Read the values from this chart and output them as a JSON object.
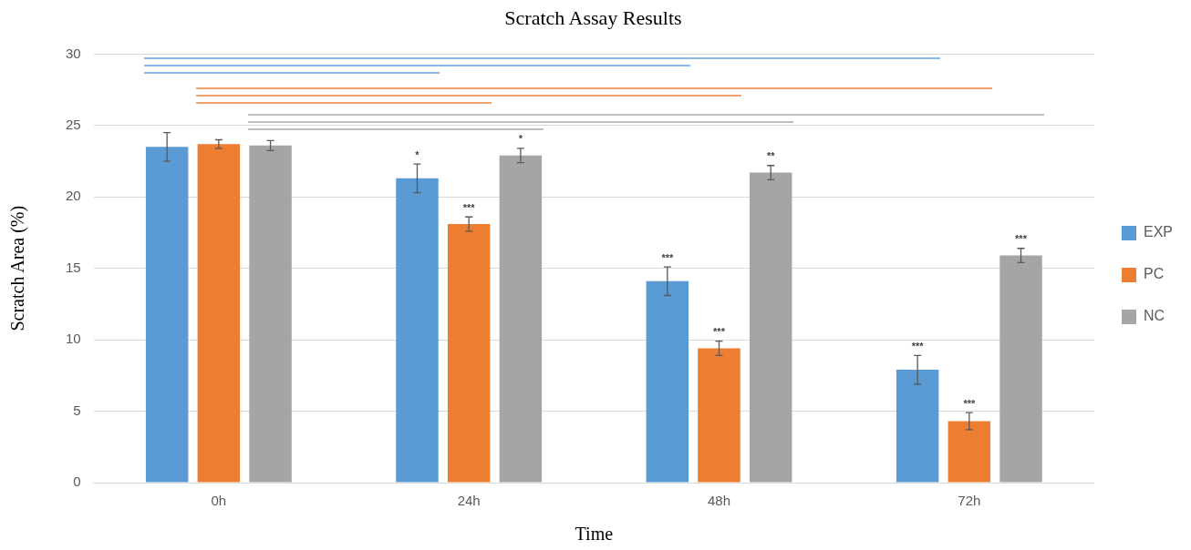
{
  "chart_data": {
    "type": "bar",
    "title": "Scratch Assay Results",
    "xlabel": "Time",
    "ylabel": "Scratch Area (%)",
    "categories": [
      "0h",
      "24h",
      "48h",
      "72h"
    ],
    "series": [
      {
        "name": "EXP",
        "color": "#5b9bd5",
        "values": [
          23.5,
          21.3,
          14.1,
          7.9
        ],
        "errors": [
          1.0,
          1.0,
          1.0,
          1.0
        ],
        "value_labels": [
          null,
          "*",
          "***",
          "***"
        ]
      },
      {
        "name": "PC",
        "color": "#ed7d31",
        "values": [
          23.7,
          18.1,
          9.4,
          4.3
        ],
        "errors": [
          0.3,
          0.5,
          0.5,
          0.6
        ],
        "value_labels": [
          null,
          "***",
          "***",
          "***"
        ]
      },
      {
        "name": "NC",
        "color": "#a5a5a5",
        "values": [
          23.6,
          22.9,
          21.7,
          15.9
        ],
        "errors": [
          0.35,
          0.5,
          0.5,
          0.5
        ],
        "value_labels": [
          null,
          "*",
          "**",
          "***"
        ]
      }
    ],
    "ylim": [
      0,
      30
    ],
    "yticks": [
      0,
      5,
      10,
      15,
      20,
      25,
      30
    ],
    "grid": "y",
    "legend": "right"
  }
}
